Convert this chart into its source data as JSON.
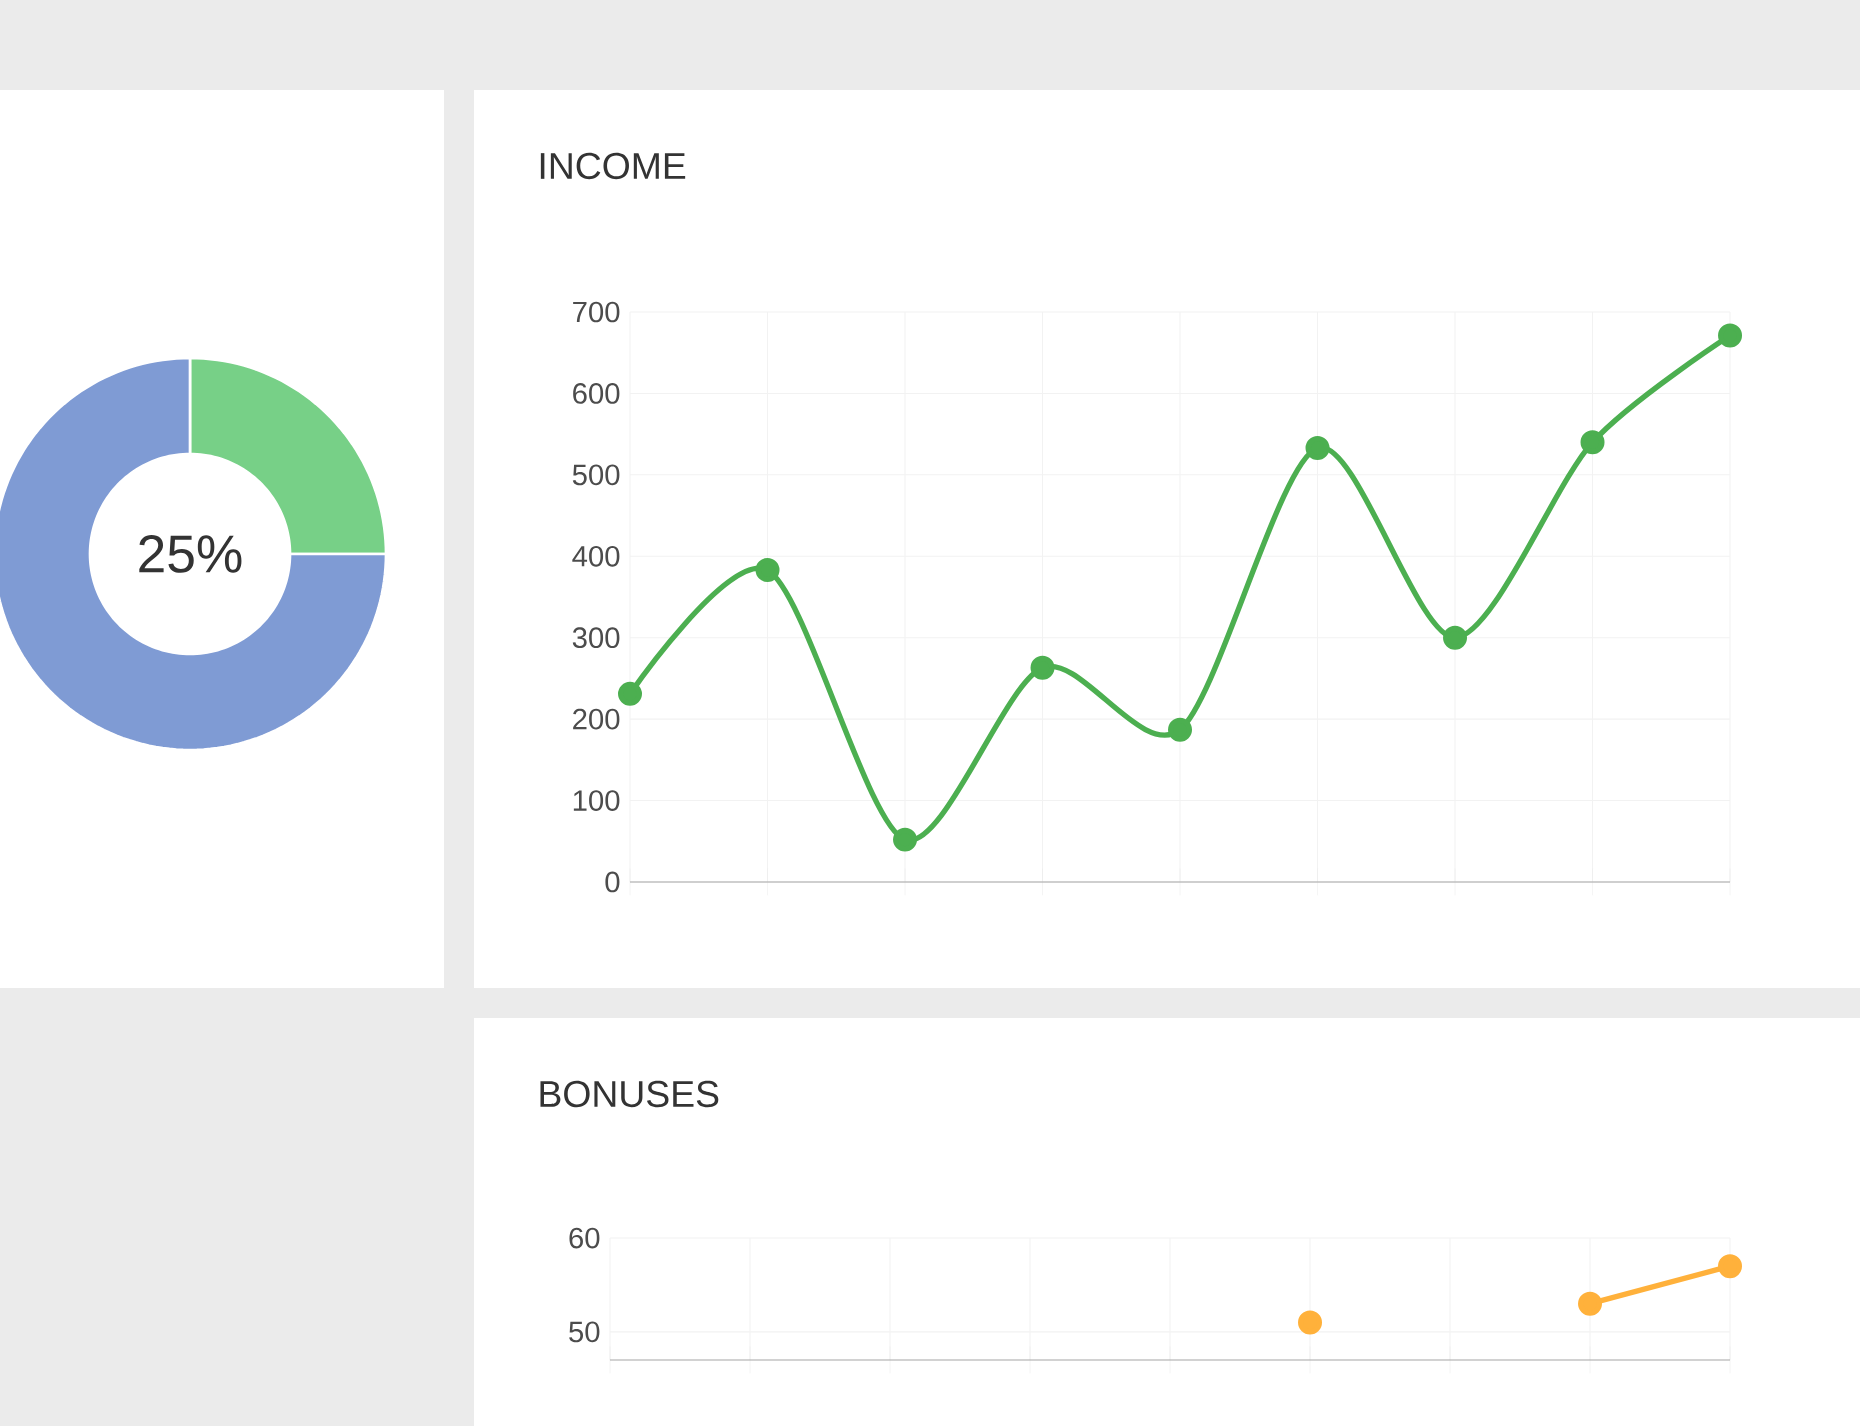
{
  "chart_data": [
    {
      "type": "donut",
      "categories": [
        null,
        null
      ],
      "values": [
        25,
        75
      ],
      "colors": [
        "#77d087",
        "#7f9bd4"
      ],
      "annotations": [
        "25%"
      ]
    },
    {
      "type": "line",
      "title": "INCOME",
      "categories": [
        null,
        null,
        null,
        null,
        null,
        null,
        null,
        null,
        null
      ],
      "series": [
        {
          "color": "#4caf50",
          "values": [
            231,
            383,
            52,
            263,
            187,
            533,
            300,
            540,
            671
          ]
        }
      ],
      "ylim": [
        0,
        700
      ],
      "yticks": [
        0,
        100,
        200,
        300,
        400,
        500,
        600,
        700
      ],
      "grid": true,
      "marker": "circle"
    },
    {
      "type": "line",
      "title": "BONUSES",
      "categories": [
        null,
        null,
        null,
        null,
        null,
        null,
        null,
        null,
        null
      ],
      "series": [
        {
          "color": "#ffb13b",
          "values": [
            null,
            null,
            null,
            null,
            null,
            51,
            null,
            53,
            57
          ]
        }
      ],
      "ylim": [
        47,
        60
      ],
      "yticks": [
        50,
        60
      ],
      "grid": true,
      "marker": "circle"
    }
  ]
}
